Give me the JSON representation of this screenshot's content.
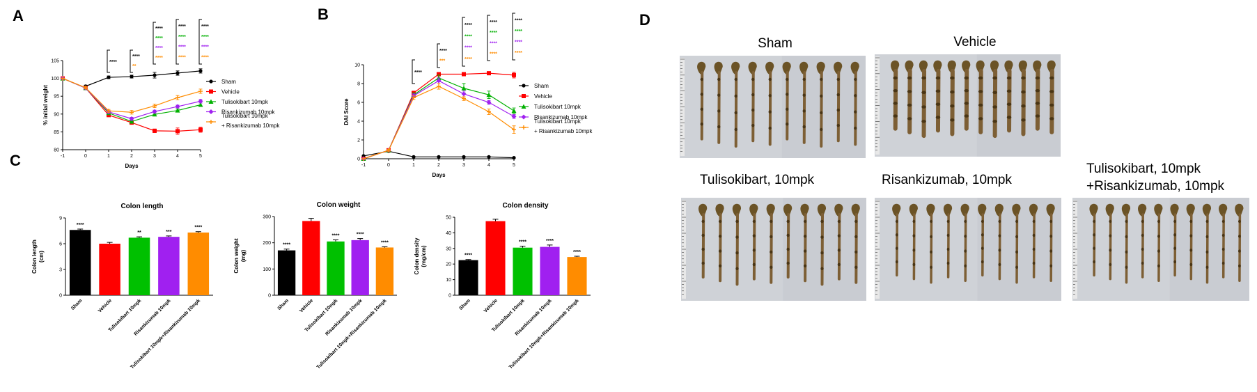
{
  "panel_labels": {
    "a": "A",
    "b": "B",
    "c": "C",
    "d": "D"
  },
  "colors": {
    "Sham": "#000000",
    "Vehicle": "#ff0000",
    "Tulisokibart": "#00b000",
    "Risankizumab": "#a020f0",
    "Combination": "#ff8c00"
  },
  "chart_data": [
    {
      "id": "weight",
      "type": "line",
      "title": "",
      "xlabel": "Days",
      "ylabel": "% initial weight",
      "x": [
        -1,
        0,
        1,
        2,
        3,
        4,
        5
      ],
      "xlim": [
        -1,
        5
      ],
      "ylim": [
        80,
        105
      ],
      "yticks": [
        80,
        85,
        90,
        95,
        100,
        105
      ],
      "series": [
        {
          "name": "Sham",
          "color": "#000000",
          "marker": "circle",
          "values": [
            null,
            97.8,
            100.3,
            100.5,
            100.9,
            101.5,
            102.1
          ],
          "err": [
            0,
            0.3,
            0.4,
            0.4,
            0.8,
            0.6,
            0.6
          ]
        },
        {
          "name": "Vehicle",
          "color": "#ff0000",
          "marker": "square",
          "values": [
            100,
            97.3,
            89.7,
            87.6,
            85.3,
            85.2,
            85.6
          ],
          "err": [
            0,
            0.3,
            0.4,
            0.4,
            0.5,
            0.9,
            0.7
          ]
        },
        {
          "name": "Tulisokibart 10mpk",
          "color": "#00b000",
          "marker": "triangle",
          "values": [
            100,
            97.3,
            90.3,
            87.9,
            89.9,
            91.0,
            92.6
          ],
          "err": [
            0,
            0.3,
            0.4,
            0.4,
            0.4,
            0.4,
            0.5
          ]
        },
        {
          "name": "Risankizumab 10mpk",
          "color": "#a020f0",
          "marker": "diamond",
          "values": [
            100,
            97.3,
            90.6,
            88.7,
            90.7,
            92.1,
            93.6
          ],
          "err": [
            0,
            0.3,
            0.4,
            0.4,
            0.4,
            0.4,
            0.5
          ]
        },
        {
          "name": "Tulisokibart 10mpk",
          "name2": "+ Risankizumab 10mpk",
          "color": "#ff8c00",
          "marker": "cross",
          "values": [
            100,
            97.4,
            90.9,
            90.5,
            92.3,
            94.6,
            96.4
          ],
          "err": [
            0,
            0.3,
            0.4,
            0.5,
            0.5,
            0.6,
            0.6
          ]
        }
      ],
      "significance": [
        {
          "x": 1,
          "stars": [
            {
              "text": "****",
              "color": "#000000"
            }
          ]
        },
        {
          "x": 2,
          "stars": [
            {
              "text": "****",
              "color": "#000000"
            },
            {
              "text": "**",
              "color": "#ff8c00"
            }
          ]
        },
        {
          "x": 3,
          "stars": [
            {
              "text": "****",
              "color": "#000000"
            },
            {
              "text": "****",
              "color": "#00b000"
            },
            {
              "text": "****",
              "color": "#a020f0"
            },
            {
              "text": "****",
              "color": "#ff8c00"
            }
          ]
        },
        {
          "x": 4,
          "stars": [
            {
              "text": "****",
              "color": "#000000"
            },
            {
              "text": "****",
              "color": "#00b000"
            },
            {
              "text": "****",
              "color": "#a020f0"
            },
            {
              "text": "****",
              "color": "#ff8c00"
            }
          ]
        },
        {
          "x": 5,
          "stars": [
            {
              "text": "****",
              "color": "#000000"
            },
            {
              "text": "****",
              "color": "#00b000"
            },
            {
              "text": "****",
              "color": "#a020f0"
            },
            {
              "text": "****",
              "color": "#ff8c00"
            }
          ]
        }
      ]
    },
    {
      "id": "dai",
      "type": "line",
      "title": "",
      "xlabel": "Days",
      "ylabel": "DAI Score",
      "x": [
        -1,
        0,
        1,
        2,
        3,
        4,
        5
      ],
      "xlim": [
        -1,
        5
      ],
      "ylim": [
        0,
        10
      ],
      "yticks": [
        0,
        2,
        4,
        6,
        8,
        10
      ],
      "series": [
        {
          "name": "Sham",
          "color": "#000000",
          "marker": "circle",
          "values": [
            0.3,
            0.8,
            0.2,
            0.2,
            0.2,
            0.2,
            0.1
          ],
          "err": [
            0,
            0.1,
            0.05,
            0.05,
            0.05,
            0.05,
            0.05
          ]
        },
        {
          "name": "Vehicle",
          "color": "#ff0000",
          "marker": "square",
          "values": [
            0,
            0.9,
            7.0,
            9.0,
            9.0,
            9.1,
            8.9
          ],
          "err": [
            0,
            0.1,
            0.2,
            0.1,
            0.1,
            0.1,
            0.3
          ]
        },
        {
          "name": "Tulisokibart 10mpk",
          "color": "#00b000",
          "marker": "triangle",
          "values": [
            0,
            0.9,
            6.8,
            8.6,
            7.5,
            6.8,
            5.1
          ],
          "err": [
            0,
            0.1,
            0.2,
            0.3,
            0.5,
            0.4,
            0.3
          ]
        },
        {
          "name": "Risankizumab 10mpk",
          "color": "#a020f0",
          "marker": "diamond",
          "values": [
            0,
            0.9,
            6.7,
            8.3,
            6.9,
            6.0,
            4.5
          ],
          "err": [
            0,
            0.1,
            0.2,
            0.3,
            0.3,
            0.2,
            0.2
          ]
        },
        {
          "name": "Tulisokibart 10mpk",
          "name2": "+ Risankizumab 10mpk",
          "color": "#ff8c00",
          "marker": "cross",
          "values": [
            0,
            0.9,
            6.5,
            7.7,
            6.4,
            5.0,
            3.1
          ],
          "err": [
            0,
            0.1,
            0.2,
            0.3,
            0.2,
            0.3,
            0.4
          ]
        }
      ],
      "significance": [
        {
          "x": 1,
          "stars": [
            {
              "text": "****",
              "color": "#000000"
            }
          ]
        },
        {
          "x": 2,
          "stars": [
            {
              "text": "****",
              "color": "#000000"
            },
            {
              "text": "***",
              "color": "#ff8c00"
            }
          ]
        },
        {
          "x": 3,
          "stars": [
            {
              "text": "****",
              "color": "#000000"
            },
            {
              "text": "****",
              "color": "#00b000"
            },
            {
              "text": "****",
              "color": "#a020f0"
            },
            {
              "text": "****",
              "color": "#ff8c00"
            }
          ]
        },
        {
          "x": 4,
          "stars": [
            {
              "text": "****",
              "color": "#000000"
            },
            {
              "text": "****",
              "color": "#00b000"
            },
            {
              "text": "****",
              "color": "#a020f0"
            },
            {
              "text": "****",
              "color": "#ff8c00"
            }
          ]
        },
        {
          "x": 5,
          "stars": [
            {
              "text": "****",
              "color": "#000000"
            },
            {
              "text": "****",
              "color": "#00b000"
            },
            {
              "text": "****",
              "color": "#a020f0"
            },
            {
              "text": "****",
              "color": "#ff8c00"
            }
          ]
        }
      ]
    },
    {
      "id": "length",
      "type": "bar",
      "title": "Colon length",
      "ylabel": "Colon length",
      "ylabel2": "(cm)",
      "categories": [
        "Sham",
        "Vehicle",
        "Tulisokibart 10mpk",
        "Risankizumab 10mpk",
        "Tulisokibart 10mpk+Risankizumab 10mpk"
      ],
      "values": [
        7.6,
        6.0,
        6.7,
        6.8,
        7.3
      ],
      "err": [
        0.1,
        0.15,
        0.1,
        0.1,
        0.1
      ],
      "colors": [
        "#000000",
        "#ff0000",
        "#00c000",
        "#a020f0",
        "#ff8c00"
      ],
      "stars": [
        "****",
        "",
        "**",
        "***",
        "****"
      ],
      "ylim": [
        0,
        9
      ],
      "yticks": [
        0,
        3,
        6,
        9
      ]
    },
    {
      "id": "weightbar",
      "type": "bar",
      "title": "Colon weight",
      "ylabel": "Colon weight",
      "ylabel2": "(mg)",
      "categories": [
        "Sham",
        "Vehicle",
        "Tulisokibart 10mpk",
        "Risankizumab 10mpk",
        "Tulisokibart 10mpk+Risankizumab 10mpk"
      ],
      "values": [
        171,
        283,
        205,
        210,
        182
      ],
      "err": [
        5,
        10,
        6,
        6,
        3
      ],
      "colors": [
        "#000000",
        "#ff0000",
        "#00c000",
        "#a020f0",
        "#ff8c00"
      ],
      "stars": [
        "****",
        "",
        "****",
        "****",
        "****"
      ],
      "ylim": [
        0,
        300
      ],
      "yticks": [
        0,
        100,
        200,
        300
      ]
    },
    {
      "id": "density",
      "type": "bar",
      "title": "Colon density",
      "ylabel": "Colon density",
      "ylabel2": "(mg/cm)",
      "categories": [
        "Sham",
        "Vehicle",
        "Tulisokibart 10mpk",
        "Risankizumab 10mpk",
        "Tulisokibart 10mpk+Risankizumab 10mpk"
      ],
      "values": [
        22.5,
        47.5,
        30.5,
        31,
        24.5
      ],
      "err": [
        0.4,
        1.2,
        1.0,
        1.2,
        0.5
      ],
      "colors": [
        "#000000",
        "#ff0000",
        "#00c000",
        "#a020f0",
        "#ff8c00"
      ],
      "stars": [
        "****",
        "",
        "****",
        "****",
        "****"
      ],
      "ylim": [
        0,
        50
      ],
      "yticks": [
        0,
        10,
        20,
        30,
        40,
        50
      ]
    }
  ],
  "photos": {
    "sham": "Sham",
    "vehicle": "Vehicle",
    "tuli": "Tulisokibart, 10mpk",
    "risa": "Risankizumab, 10mpk",
    "combo1": "Tulisokibart, 10mpk",
    "combo2": "+Risankizumab, 10mpk"
  }
}
